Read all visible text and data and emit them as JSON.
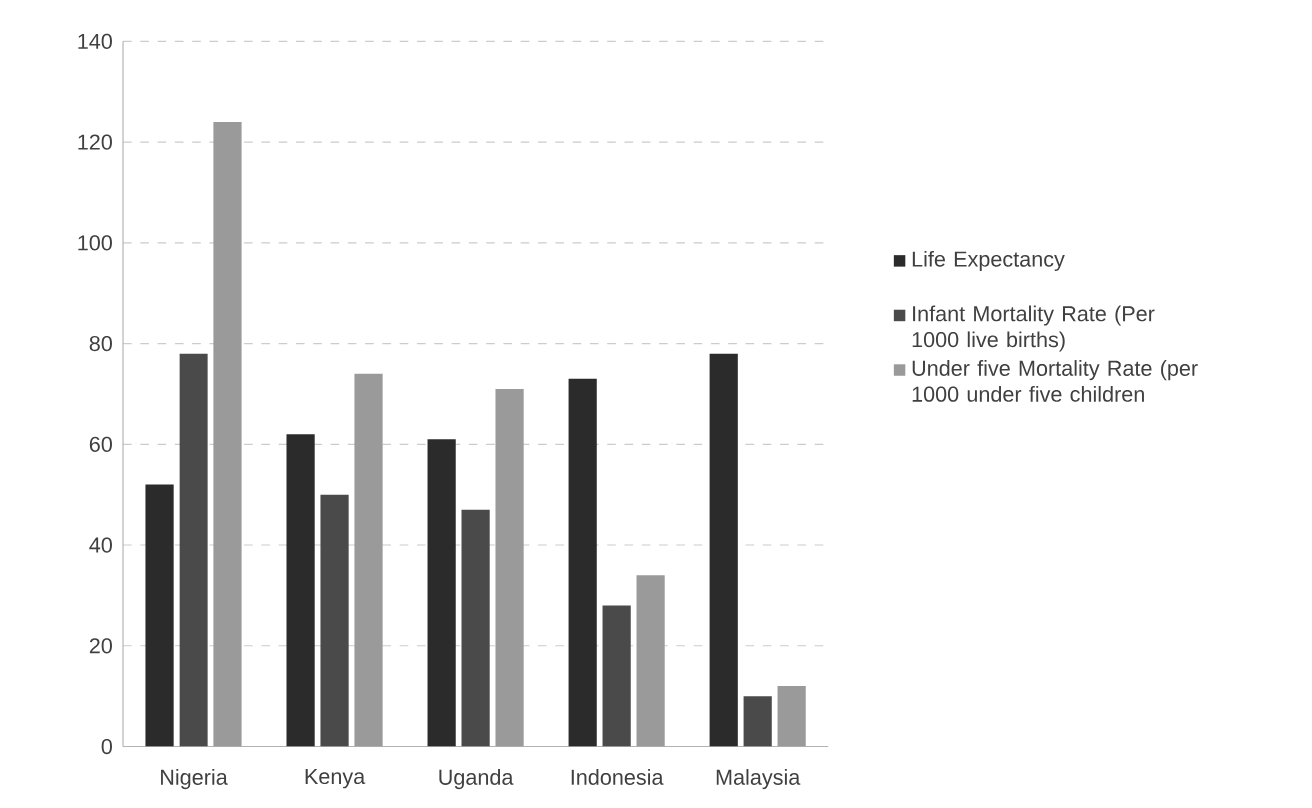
{
  "chart_data": {
    "type": "bar",
    "categories": [
      "Nigeria",
      "Kenya",
      "Uganda",
      "Indonesia",
      "Malaysia"
    ],
    "series": [
      {
        "name": "Life Expectancy",
        "color": "#2b2b2b",
        "values": [
          52,
          62,
          61,
          73,
          78
        ]
      },
      {
        "name": "Infant Mortality Rate (Per 1000 live births)",
        "color": "#4a4a4a",
        "values": [
          78,
          50,
          47,
          28,
          10
        ]
      },
      {
        "name": "Under five Mortality Rate (per 1000 under five children",
        "color": "#9a9a9a",
        "values": [
          124,
          74,
          71,
          34,
          12
        ]
      }
    ],
    "ylim": [
      0,
      140
    ],
    "yticks": [
      0,
      20,
      40,
      60,
      80,
      100,
      120,
      140
    ],
    "grid": "y",
    "legend": "right"
  }
}
